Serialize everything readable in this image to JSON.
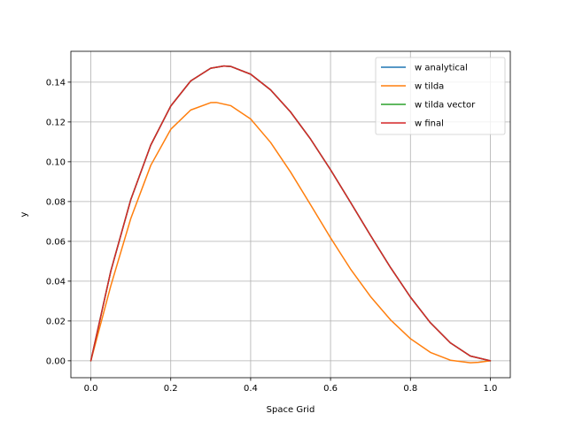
{
  "chart_data": {
    "type": "line",
    "title": "",
    "xlabel": "Space Grid",
    "ylabel": "y",
    "xlim": [
      -0.05,
      1.05
    ],
    "ylim": [
      -0.0085,
      0.1555
    ],
    "xticks": [
      0.0,
      0.2,
      0.4,
      0.6,
      0.8,
      1.0
    ],
    "xtick_labels": [
      "0.0",
      "0.2",
      "0.4",
      "0.6",
      "0.8",
      "1.0"
    ],
    "yticks": [
      0.0,
      0.02,
      0.04,
      0.06,
      0.08,
      0.1,
      0.12,
      0.14
    ],
    "ytick_labels": [
      "0.00",
      "0.02",
      "0.04",
      "0.06",
      "0.08",
      "0.10",
      "0.12",
      "0.14"
    ],
    "grid": true,
    "legend_position": "top-right",
    "series": [
      {
        "name": "w analytical",
        "color": "#1f77b4",
        "x": [
          0.0,
          0.05,
          0.1,
          0.15,
          0.2,
          0.25,
          0.3,
          0.333,
          0.35,
          0.4,
          0.45,
          0.5,
          0.55,
          0.6,
          0.65,
          0.7,
          0.75,
          0.8,
          0.85,
          0.9,
          0.95,
          1.0
        ],
        "y": [
          0.0,
          0.0451,
          0.081,
          0.1084,
          0.128,
          0.1406,
          0.147,
          0.1481,
          0.1479,
          0.144,
          0.1361,
          0.125,
          0.1114,
          0.096,
          0.0796,
          0.063,
          0.0469,
          0.032,
          0.0191,
          0.009,
          0.0024,
          0.0
        ]
      },
      {
        "name": "w tilda",
        "color": "#ff7f0e",
        "x": [
          0.0,
          0.05,
          0.1,
          0.15,
          0.2,
          0.25,
          0.3,
          0.314,
          0.35,
          0.4,
          0.45,
          0.5,
          0.55,
          0.6,
          0.65,
          0.7,
          0.75,
          0.8,
          0.85,
          0.9,
          0.95,
          0.97,
          1.0
        ],
        "y": [
          0.0,
          0.0377,
          0.0715,
          0.0982,
          0.1163,
          0.126,
          0.1297,
          0.1298,
          0.1282,
          0.1215,
          0.1097,
          0.0948,
          0.0784,
          0.0618,
          0.0461,
          0.0323,
          0.0206,
          0.0111,
          0.0042,
          0.0003,
          -0.001,
          -0.0008,
          0.0
        ]
      },
      {
        "name": "w tilda vector",
        "color": "#2ca02c",
        "x": [
          0.0,
          0.05,
          0.1,
          0.15,
          0.2,
          0.25,
          0.3,
          0.333,
          0.35,
          0.4,
          0.45,
          0.5,
          0.55,
          0.6,
          0.65,
          0.7,
          0.75,
          0.8,
          0.85,
          0.9,
          0.95,
          1.0
        ],
        "y": [
          0.0,
          0.0451,
          0.081,
          0.1084,
          0.128,
          0.1406,
          0.147,
          0.1481,
          0.1479,
          0.144,
          0.1361,
          0.125,
          0.1114,
          0.096,
          0.0796,
          0.063,
          0.0469,
          0.032,
          0.0191,
          0.009,
          0.0024,
          0.0
        ]
      },
      {
        "name": "w final",
        "color": "#d62728",
        "x": [
          0.0,
          0.05,
          0.1,
          0.15,
          0.2,
          0.25,
          0.3,
          0.333,
          0.35,
          0.4,
          0.45,
          0.5,
          0.55,
          0.6,
          0.65,
          0.7,
          0.75,
          0.8,
          0.85,
          0.9,
          0.95,
          1.0
        ],
        "y": [
          0.0,
          0.0451,
          0.081,
          0.1084,
          0.128,
          0.1406,
          0.147,
          0.1481,
          0.1479,
          0.144,
          0.1361,
          0.125,
          0.1114,
          0.096,
          0.0796,
          0.063,
          0.0469,
          0.032,
          0.0191,
          0.009,
          0.0024,
          0.0
        ]
      }
    ]
  }
}
